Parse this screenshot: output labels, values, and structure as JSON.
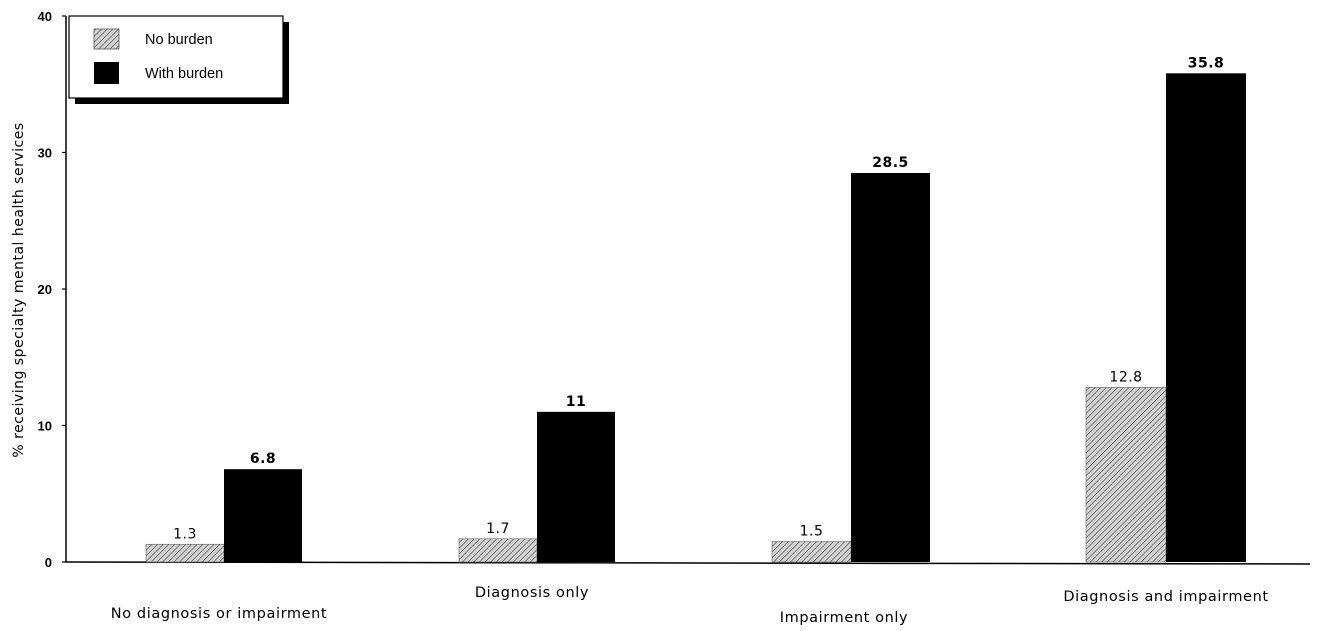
{
  "chart_data": {
    "type": "bar",
    "categories": [
      "No diagnosis or impairment",
      "Diagnosis only",
      "Impairment only",
      "Diagnosis and impairment"
    ],
    "series": [
      {
        "name": "No burden",
        "values": [
          1.3,
          1.7,
          1.5,
          12.8
        ],
        "pattern": "hatched",
        "color": "#8a8a8a"
      },
      {
        "name": "With burden",
        "values": [
          6.8,
          11,
          28.5,
          35.8
        ],
        "pattern": "solid",
        "color": "#000000"
      }
    ],
    "value_labels": [
      [
        "1.3",
        "1.7",
        "1.5",
        "12.8"
      ],
      [
        "6.8",
        "11",
        "28.5",
        "35.8"
      ]
    ],
    "ylabel": "% receiving specialty mental health services",
    "xlabel": "",
    "ylim": [
      0,
      40
    ],
    "yticks": [
      "0",
      "10",
      "20",
      "30",
      "40"
    ],
    "grid": false,
    "legend_position": "top-left"
  }
}
